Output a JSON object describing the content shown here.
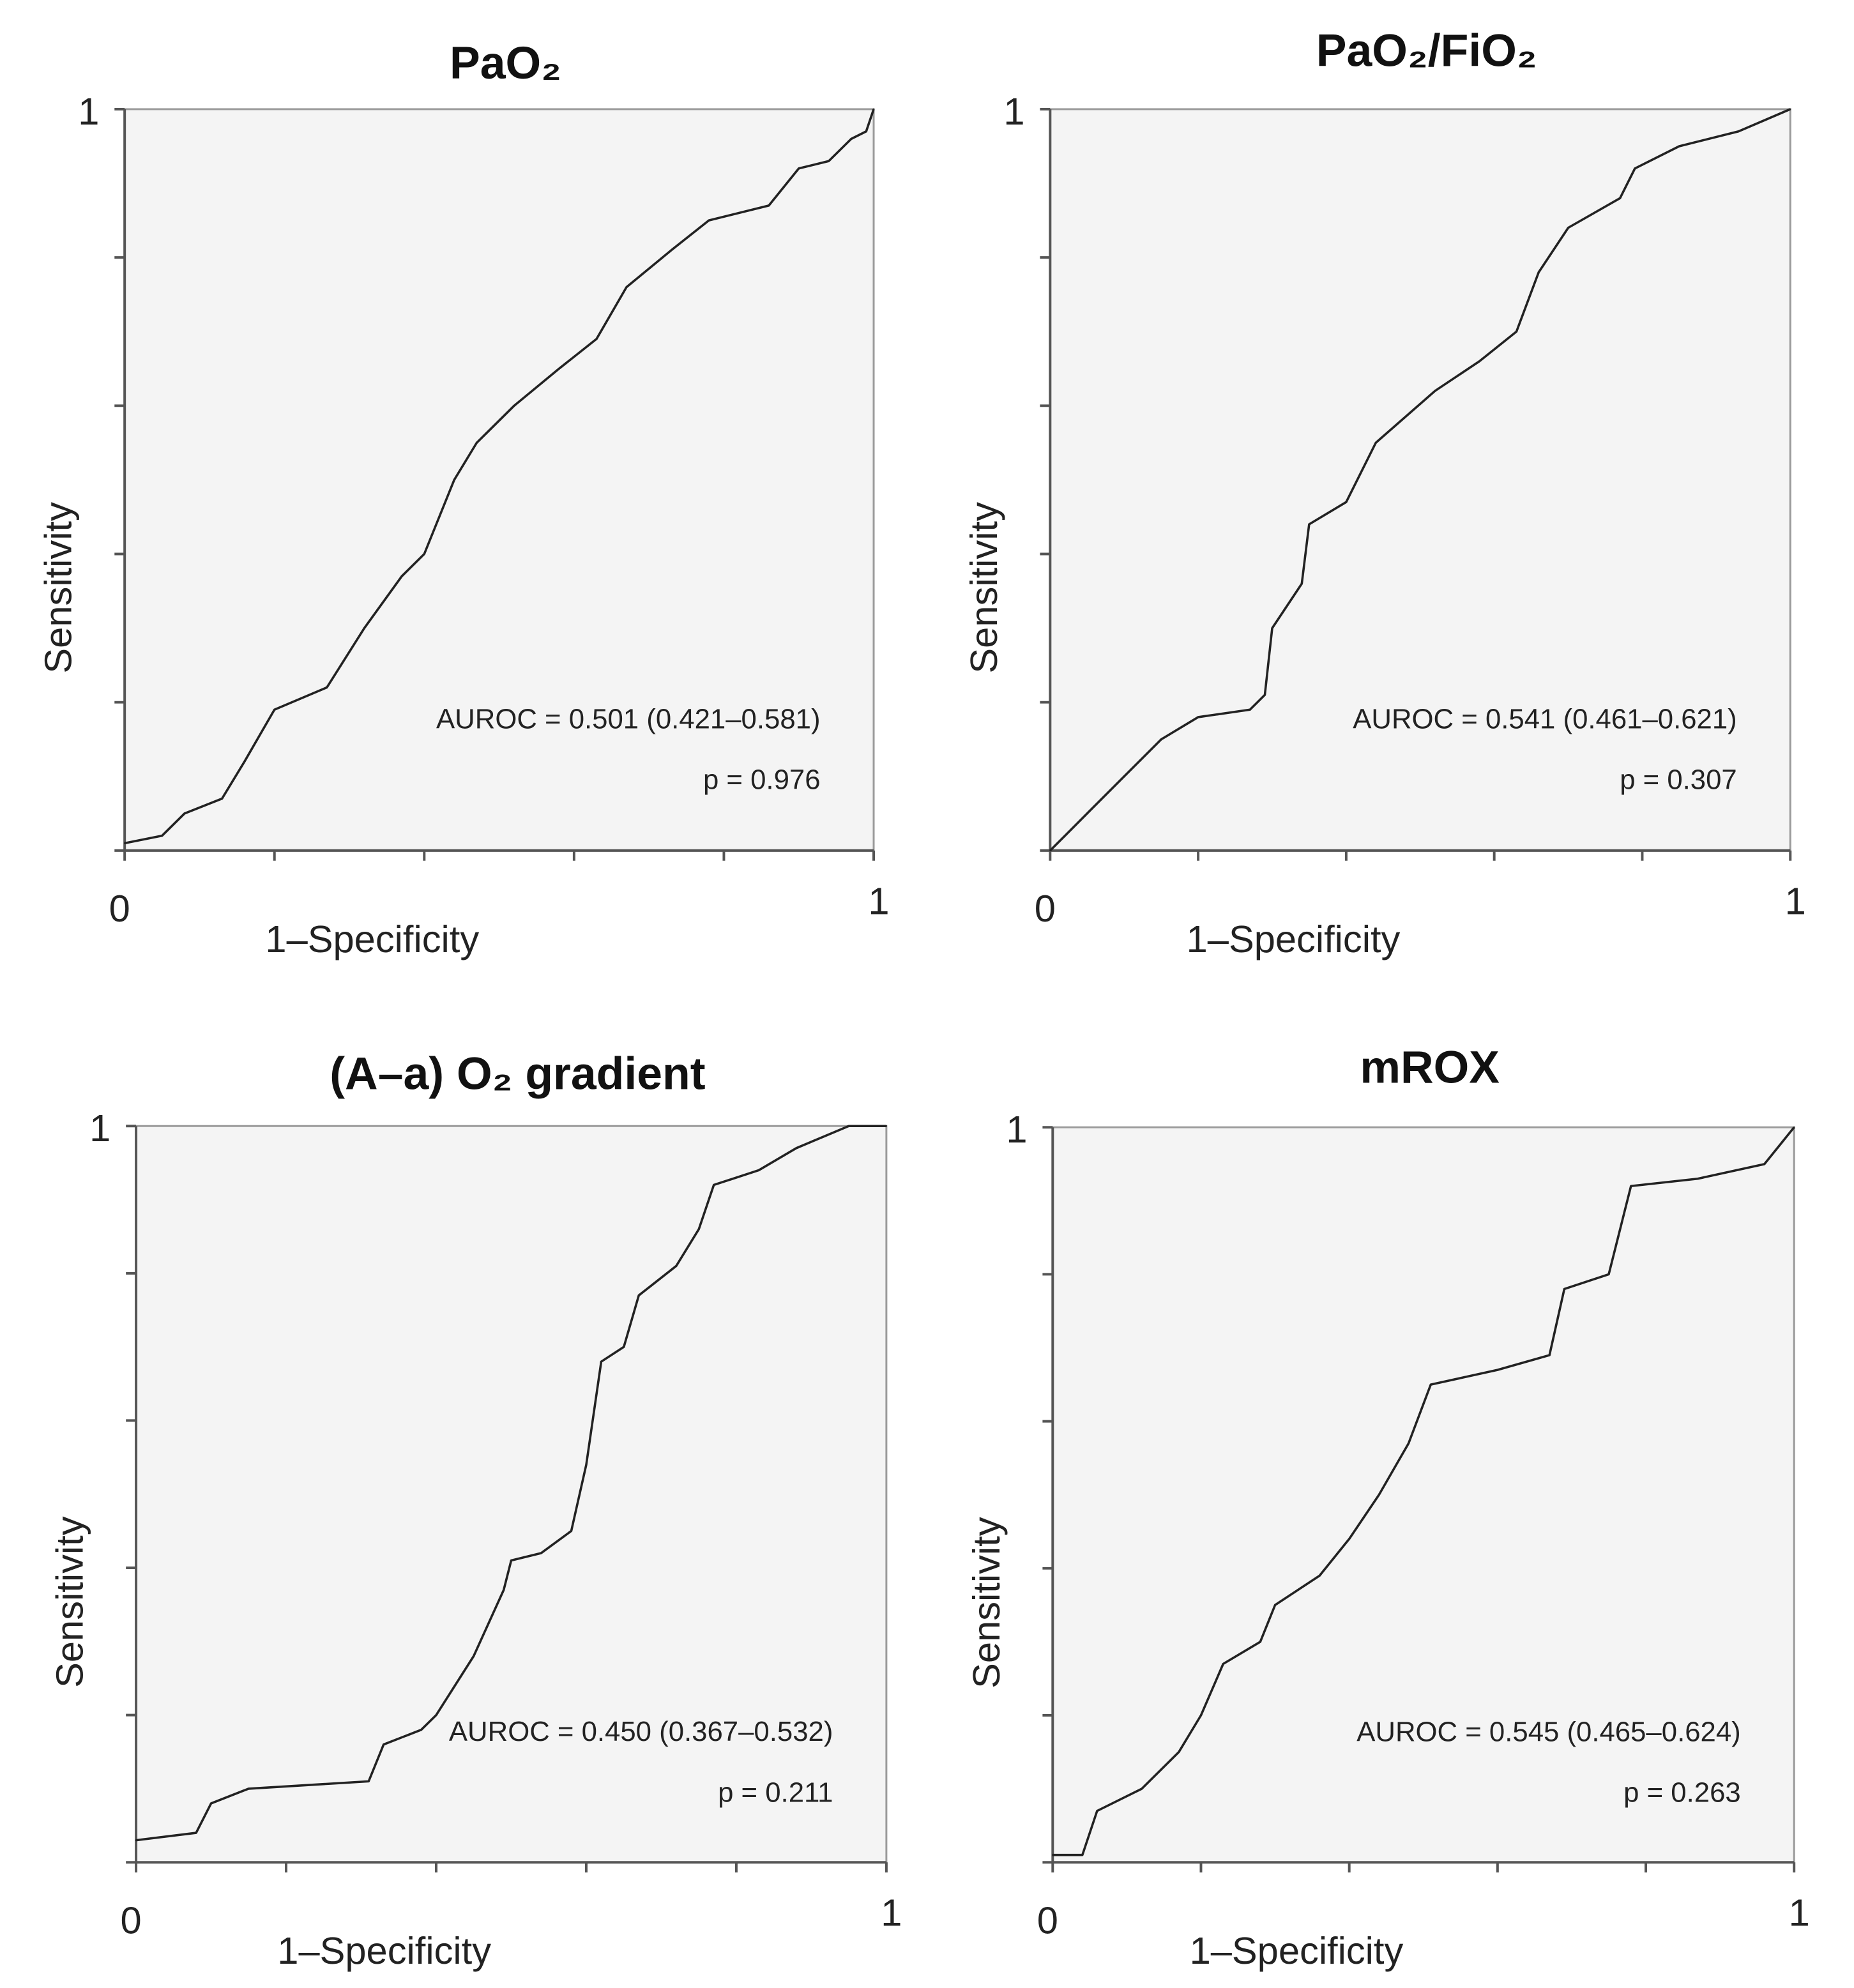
{
  "chart_data": [
    {
      "type": "line",
      "title": "PaO₂",
      "xlabel": "1–Specificity",
      "ylabel": "Sensitivity",
      "xlim": [
        0,
        1
      ],
      "ylim": [
        0,
        1
      ],
      "x_tick_labels": [
        "0",
        "1"
      ],
      "y_tick_labels": [
        "1"
      ],
      "tick_step": 0.2,
      "grid": false,
      "annotations": [
        "AUROC = 0.501 (0.421–0.581)",
        "p = 0.976"
      ],
      "points": [
        [
          0,
          0.01
        ],
        [
          0.05,
          0.02
        ],
        [
          0.08,
          0.05
        ],
        [
          0.13,
          0.07
        ],
        [
          0.16,
          0.12
        ],
        [
          0.2,
          0.19
        ],
        [
          0.27,
          0.22
        ],
        [
          0.32,
          0.3
        ],
        [
          0.37,
          0.37
        ],
        [
          0.4,
          0.4
        ],
        [
          0.44,
          0.5
        ],
        [
          0.47,
          0.55
        ],
        [
          0.52,
          0.6
        ],
        [
          0.58,
          0.65
        ],
        [
          0.63,
          0.69
        ],
        [
          0.67,
          0.76
        ],
        [
          0.73,
          0.81
        ],
        [
          0.78,
          0.85
        ],
        [
          0.86,
          0.87
        ],
        [
          0.9,
          0.92
        ],
        [
          0.94,
          0.93
        ],
        [
          0.97,
          0.96
        ],
        [
          0.99,
          0.97
        ],
        [
          1,
          1
        ]
      ]
    },
    {
      "type": "line",
      "title": "PaO₂/FiO₂",
      "xlabel": "1–Specificity",
      "ylabel": "Sensitivity",
      "xlim": [
        0,
        1
      ],
      "ylim": [
        0,
        1
      ],
      "x_tick_labels": [
        "0",
        "1"
      ],
      "y_tick_labels": [
        "1"
      ],
      "tick_step": 0.2,
      "grid": false,
      "annotations": [
        "AUROC = 0.541 (0.461–0.621)",
        "p = 0.307"
      ],
      "points": [
        [
          0,
          0
        ],
        [
          0.02,
          0.02
        ],
        [
          0.05,
          0.05
        ],
        [
          0.1,
          0.1
        ],
        [
          0.15,
          0.15
        ],
        [
          0.2,
          0.18
        ],
        [
          0.27,
          0.19
        ],
        [
          0.29,
          0.21
        ],
        [
          0.3,
          0.3
        ],
        [
          0.34,
          0.36
        ],
        [
          0.35,
          0.44
        ],
        [
          0.4,
          0.47
        ],
        [
          0.44,
          0.55
        ],
        [
          0.52,
          0.62
        ],
        [
          0.58,
          0.66
        ],
        [
          0.63,
          0.7
        ],
        [
          0.66,
          0.78
        ],
        [
          0.7,
          0.84
        ],
        [
          0.77,
          0.88
        ],
        [
          0.79,
          0.92
        ],
        [
          0.85,
          0.95
        ],
        [
          0.93,
          0.97
        ],
        [
          1,
          1
        ]
      ]
    },
    {
      "type": "line",
      "title": "(A–a) O₂ gradient",
      "xlabel": "1–Specificity",
      "ylabel": "Sensitivity",
      "xlim": [
        0,
        1
      ],
      "ylim": [
        0,
        1
      ],
      "x_tick_labels": [
        "0",
        "1"
      ],
      "y_tick_labels": [
        "1"
      ],
      "tick_step": 0.2,
      "grid": false,
      "annotations": [
        "AUROC = 0.450 (0.367–0.532)",
        "p = 0.211"
      ],
      "points": [
        [
          0,
          0.03
        ],
        [
          0.08,
          0.04
        ],
        [
          0.1,
          0.08
        ],
        [
          0.15,
          0.1
        ],
        [
          0.31,
          0.11
        ],
        [
          0.33,
          0.16
        ],
        [
          0.38,
          0.18
        ],
        [
          0.4,
          0.2
        ],
        [
          0.45,
          0.28
        ],
        [
          0.49,
          0.37
        ],
        [
          0.5,
          0.41
        ],
        [
          0.54,
          0.42
        ],
        [
          0.58,
          0.45
        ],
        [
          0.6,
          0.54
        ],
        [
          0.62,
          0.68
        ],
        [
          0.65,
          0.7
        ],
        [
          0.67,
          0.77
        ],
        [
          0.72,
          0.81
        ],
        [
          0.75,
          0.86
        ],
        [
          0.77,
          0.92
        ],
        [
          0.83,
          0.94
        ],
        [
          0.88,
          0.97
        ],
        [
          0.95,
          1
        ],
        [
          1,
          1
        ]
      ]
    },
    {
      "type": "line",
      "title": "mROX",
      "xlabel": "1–Specificity",
      "ylabel": "Sensitivity",
      "xlim": [
        0,
        1
      ],
      "ylim": [
        0,
        1
      ],
      "x_tick_labels": [
        "0",
        "1"
      ],
      "y_tick_labels": [
        "1"
      ],
      "tick_step": 0.2,
      "grid": false,
      "annotations": [
        "AUROC = 0.545 (0.465–0.624)",
        "p = 0.263"
      ],
      "points": [
        [
          0,
          0.01
        ],
        [
          0.04,
          0.01
        ],
        [
          0.06,
          0.07
        ],
        [
          0.12,
          0.1
        ],
        [
          0.17,
          0.15
        ],
        [
          0.2,
          0.2
        ],
        [
          0.23,
          0.27
        ],
        [
          0.28,
          0.3
        ],
        [
          0.3,
          0.35
        ],
        [
          0.36,
          0.39
        ],
        [
          0.4,
          0.44
        ],
        [
          0.44,
          0.5
        ],
        [
          0.48,
          0.57
        ],
        [
          0.51,
          0.65
        ],
        [
          0.6,
          0.67
        ],
        [
          0.67,
          0.69
        ],
        [
          0.69,
          0.78
        ],
        [
          0.75,
          0.8
        ],
        [
          0.78,
          0.92
        ],
        [
          0.87,
          0.93
        ],
        [
          0.96,
          0.95
        ],
        [
          1,
          1
        ]
      ]
    }
  ],
  "colors": {
    "plot_background": "#f4f4f4",
    "line": "#222222",
    "axis": "#555555"
  }
}
